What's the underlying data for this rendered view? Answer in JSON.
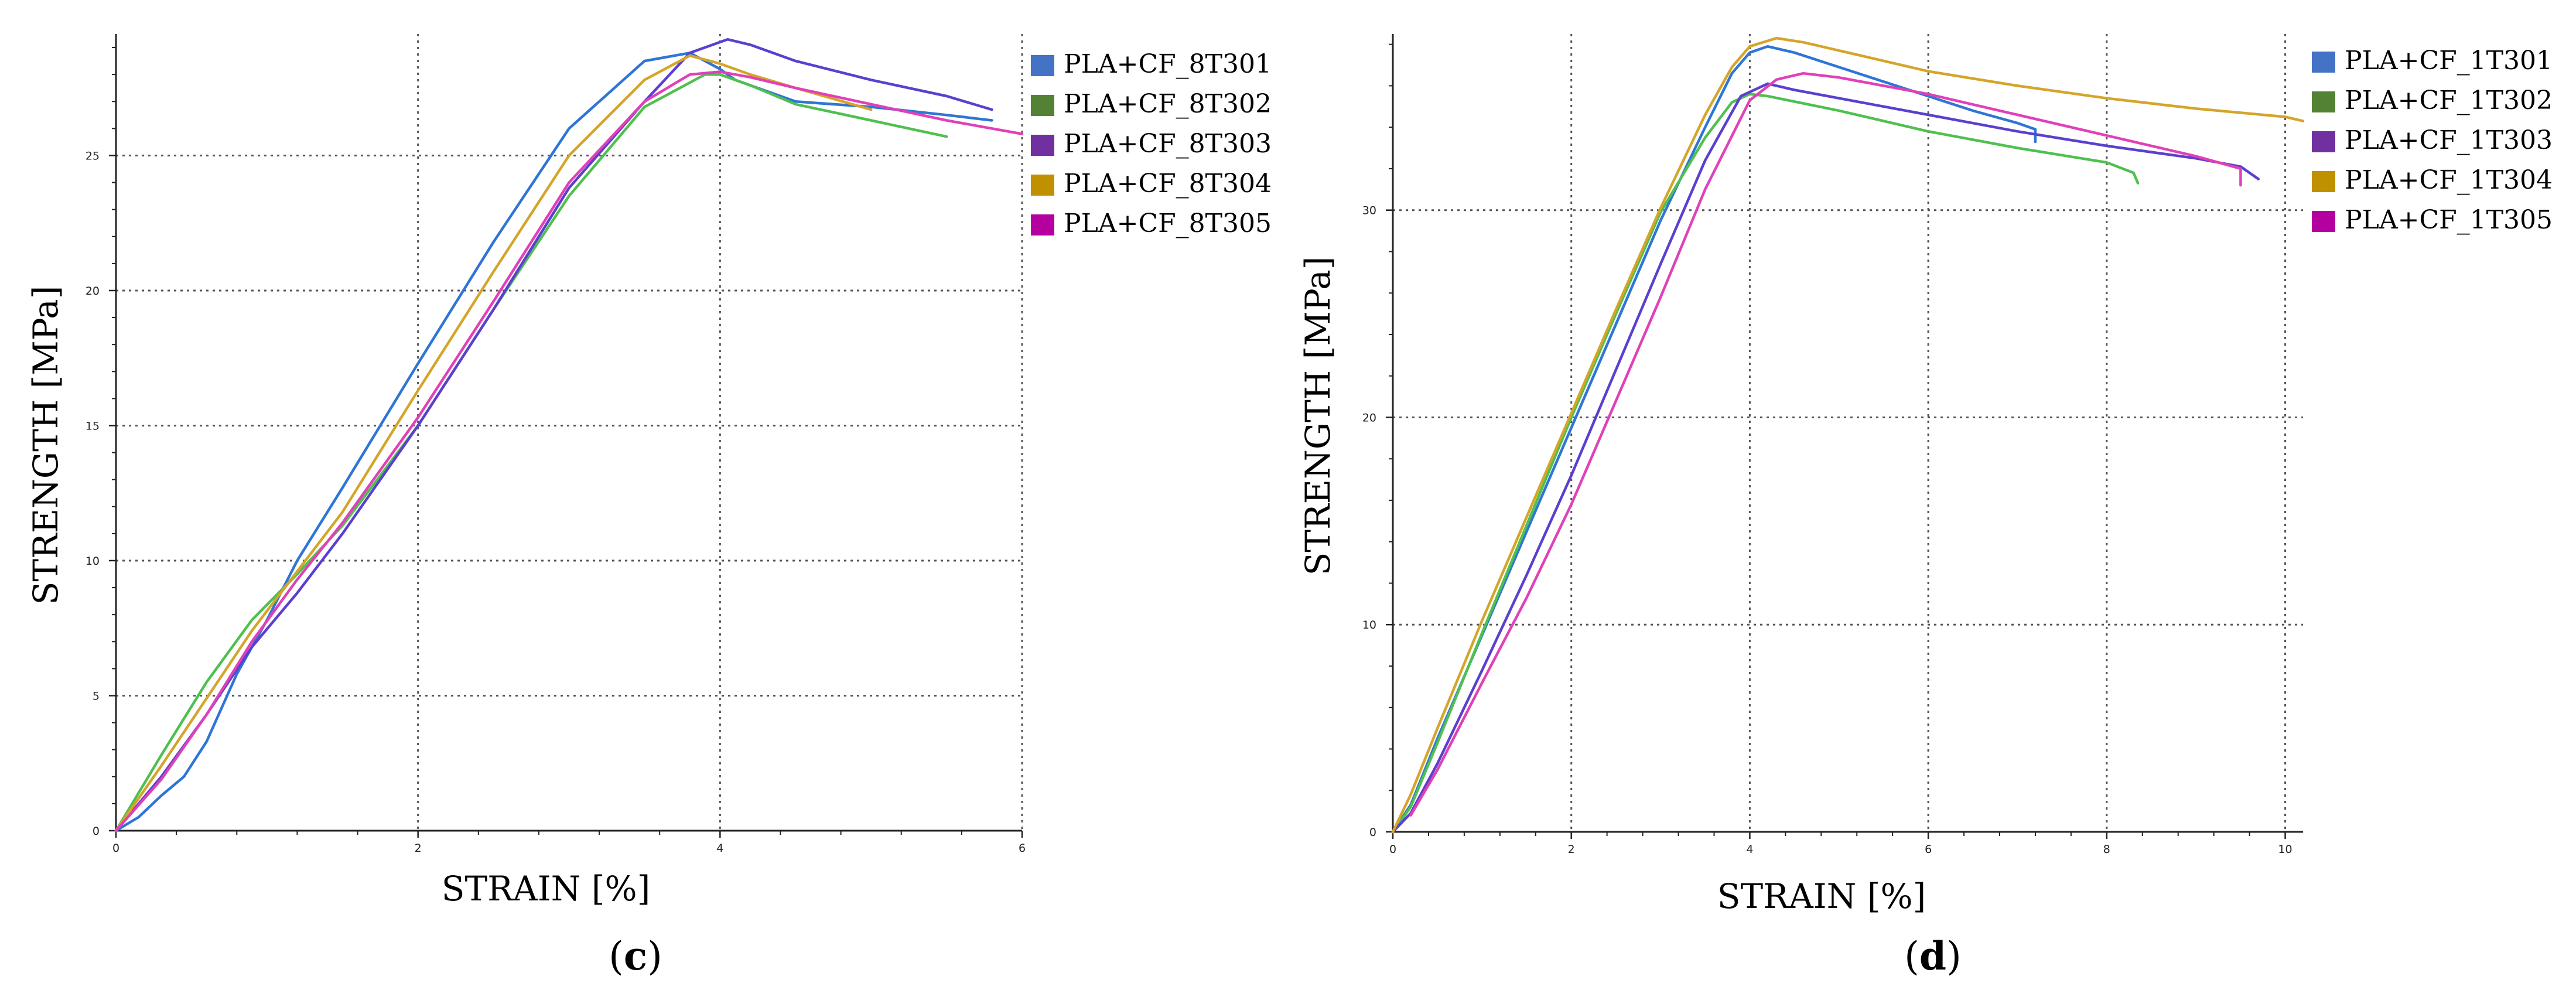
{
  "chart_data": [
    {
      "panel": "c",
      "type": "line",
      "xlabel": "STRAIN [%]",
      "ylabel": "STRENGTH [MPa]",
      "xlim": [
        0,
        6
      ],
      "ylim": [
        0,
        29.5
      ],
      "xticks": [
        0,
        2,
        4,
        6
      ],
      "yticks": [
        0,
        5,
        10,
        15,
        20,
        25
      ],
      "grid": true,
      "legend_position": "top-right",
      "series": [
        {
          "name": "PLA+CF_8T301",
          "color": "#2e75d6",
          "legend_color": "#4472c4",
          "x": [
            0,
            0.15,
            0.3,
            0.45,
            0.6,
            0.8,
            1.0,
            1.2,
            1.5,
            2.0,
            2.5,
            3.0,
            3.5,
            3.8,
            4.0,
            4.1,
            4.5,
            5.0,
            5.5,
            5.8
          ],
          "y": [
            0,
            0.5,
            1.3,
            2.0,
            3.3,
            5.8,
            7.8,
            10.0,
            12.7,
            17.3,
            21.8,
            26.0,
            28.5,
            28.8,
            28.2,
            27.8,
            27.0,
            26.8,
            26.5,
            26.3
          ]
        },
        {
          "name": "PLA+CF_8T302",
          "color": "#4fc04f",
          "legend_color": "#548235",
          "x": [
            0,
            0.3,
            0.6,
            0.9,
            1.2,
            1.5,
            2.0,
            2.5,
            3.0,
            3.5,
            3.9,
            4.0,
            4.2,
            4.5,
            5.0,
            5.5
          ],
          "y": [
            0,
            2.8,
            5.5,
            7.8,
            9.5,
            11.3,
            15.0,
            19.3,
            23.5,
            26.8,
            28.0,
            28.0,
            27.6,
            26.9,
            26.3,
            25.7
          ]
        },
        {
          "name": "PLA+CF_8T303",
          "color": "#5b3fcf",
          "legend_color": "#7030a0",
          "x": [
            0,
            0.3,
            0.6,
            0.9,
            1.2,
            1.5,
            2.0,
            2.5,
            3.0,
            3.5,
            3.8,
            4.05,
            4.2,
            4.5,
            5.0,
            5.5,
            5.8
          ],
          "y": [
            0,
            2.0,
            4.3,
            6.8,
            8.8,
            11.0,
            15.0,
            19.3,
            23.8,
            27.0,
            28.8,
            29.3,
            29.1,
            28.5,
            27.8,
            27.2,
            26.7
          ]
        },
        {
          "name": "PLA+CF_8T304",
          "color": "#d4a52a",
          "legend_color": "#bf9000",
          "x": [
            0,
            0.3,
            0.6,
            0.9,
            1.2,
            1.5,
            2.0,
            2.5,
            3.0,
            3.5,
            3.8,
            4.0,
            4.2,
            4.5,
            5.0
          ],
          "y": [
            0,
            2.4,
            4.9,
            7.4,
            9.6,
            11.8,
            16.3,
            20.7,
            25.0,
            27.8,
            28.7,
            28.4,
            28.0,
            27.5,
            26.7
          ]
        },
        {
          "name": "PLA+CF_8T305",
          "color": "#e040b8",
          "legend_color": "#b4009e",
          "x": [
            0,
            0.3,
            0.6,
            0.9,
            1.2,
            1.5,
            2.0,
            2.5,
            3.0,
            3.5,
            3.8,
            4.0,
            4.2,
            4.5,
            5.0,
            5.5,
            6.0
          ],
          "y": [
            0,
            1.9,
            4.3,
            7.0,
            9.3,
            11.4,
            15.3,
            19.6,
            24.0,
            27.0,
            28.0,
            28.1,
            27.9,
            27.5,
            26.9,
            26.3,
            25.8
          ]
        }
      ],
      "panel_label": "c"
    },
    {
      "panel": "d",
      "type": "line",
      "xlabel": "STRAIN [%]",
      "ylabel": "STRENGTH [MPa]",
      "xlim": [
        0,
        10.2
      ],
      "ylim": [
        0,
        38.5
      ],
      "xticks": [
        0,
        2,
        4,
        6,
        8,
        10
      ],
      "yticks": [
        0,
        10,
        20,
        30
      ],
      "grid": true,
      "legend_position": "top-right",
      "series": [
        {
          "name": "PLA+CF_1T301",
          "color": "#2e75d6",
          "legend_color": "#4472c4",
          "x": [
            0,
            0.2,
            0.5,
            1.0,
            1.5,
            2.0,
            2.5,
            3.0,
            3.5,
            3.8,
            4.0,
            4.2,
            4.5,
            5.0,
            5.5,
            6.0,
            6.5,
            7.0,
            7.2,
            7.2
          ],
          "y": [
            0,
            1.3,
            4.5,
            9.5,
            14.5,
            19.5,
            24.5,
            29.5,
            34.0,
            36.6,
            37.6,
            37.9,
            37.6,
            36.9,
            36.2,
            35.5,
            34.8,
            34.2,
            33.9,
            33.3
          ]
        },
        {
          "name": "PLA+CF_1T302",
          "color": "#4fc04f",
          "legend_color": "#548235",
          "x": [
            0,
            0.2,
            0.5,
            1.0,
            1.5,
            2.0,
            2.5,
            3.0,
            3.5,
            3.8,
            4.0,
            4.2,
            5.0,
            6.0,
            7.0,
            8.0,
            8.3,
            8.35
          ],
          "y": [
            0,
            1.2,
            4.3,
            9.6,
            14.8,
            20.0,
            25.0,
            29.9,
            33.5,
            35.2,
            35.6,
            35.5,
            34.8,
            33.8,
            33.0,
            32.3,
            31.8,
            31.3
          ]
        },
        {
          "name": "PLA+CF_1T303",
          "color": "#5b3fcf",
          "legend_color": "#7030a0",
          "x": [
            0,
            0.2,
            0.5,
            1.0,
            1.5,
            2.0,
            2.5,
            3.0,
            3.5,
            3.9,
            4.2,
            4.5,
            5.0,
            6.0,
            7.0,
            8.0,
            9.0,
            9.5,
            9.7
          ],
          "y": [
            0,
            0.9,
            3.3,
            7.8,
            12.4,
            17.2,
            22.3,
            27.4,
            32.4,
            35.5,
            36.1,
            35.8,
            35.4,
            34.6,
            33.8,
            33.1,
            32.5,
            32.1,
            31.5
          ]
        },
        {
          "name": "PLA+CF_1T304",
          "color": "#d4a52a",
          "legend_color": "#bf9000",
          "x": [
            0,
            0.2,
            0.5,
            1.0,
            1.5,
            2.0,
            2.5,
            3.0,
            3.5,
            3.8,
            4.0,
            4.3,
            4.6,
            5.0,
            6.0,
            7.0,
            8.0,
            9.0,
            10.0,
            10.2
          ],
          "y": [
            0,
            1.8,
            5.0,
            10.2,
            15.2,
            20.2,
            25.2,
            30.1,
            34.6,
            36.9,
            37.9,
            38.3,
            38.1,
            37.7,
            36.7,
            36.0,
            35.4,
            34.9,
            34.5,
            34.3
          ]
        },
        {
          "name": "PLA+CF_1T305",
          "color": "#e040b8",
          "legend_color": "#b4009e",
          "x": [
            0.2,
            0.5,
            1.0,
            1.5,
            2.0,
            2.5,
            3.0,
            3.5,
            4.0,
            4.3,
            4.6,
            5.0,
            6.0,
            7.0,
            8.0,
            9.0,
            9.5,
            9.5
          ],
          "y": [
            0.8,
            3.0,
            7.2,
            11.3,
            15.8,
            20.8,
            25.8,
            31.0,
            35.3,
            36.3,
            36.6,
            36.4,
            35.6,
            34.6,
            33.6,
            32.6,
            32.0,
            31.2
          ]
        }
      ],
      "panel_label": "d"
    }
  ]
}
